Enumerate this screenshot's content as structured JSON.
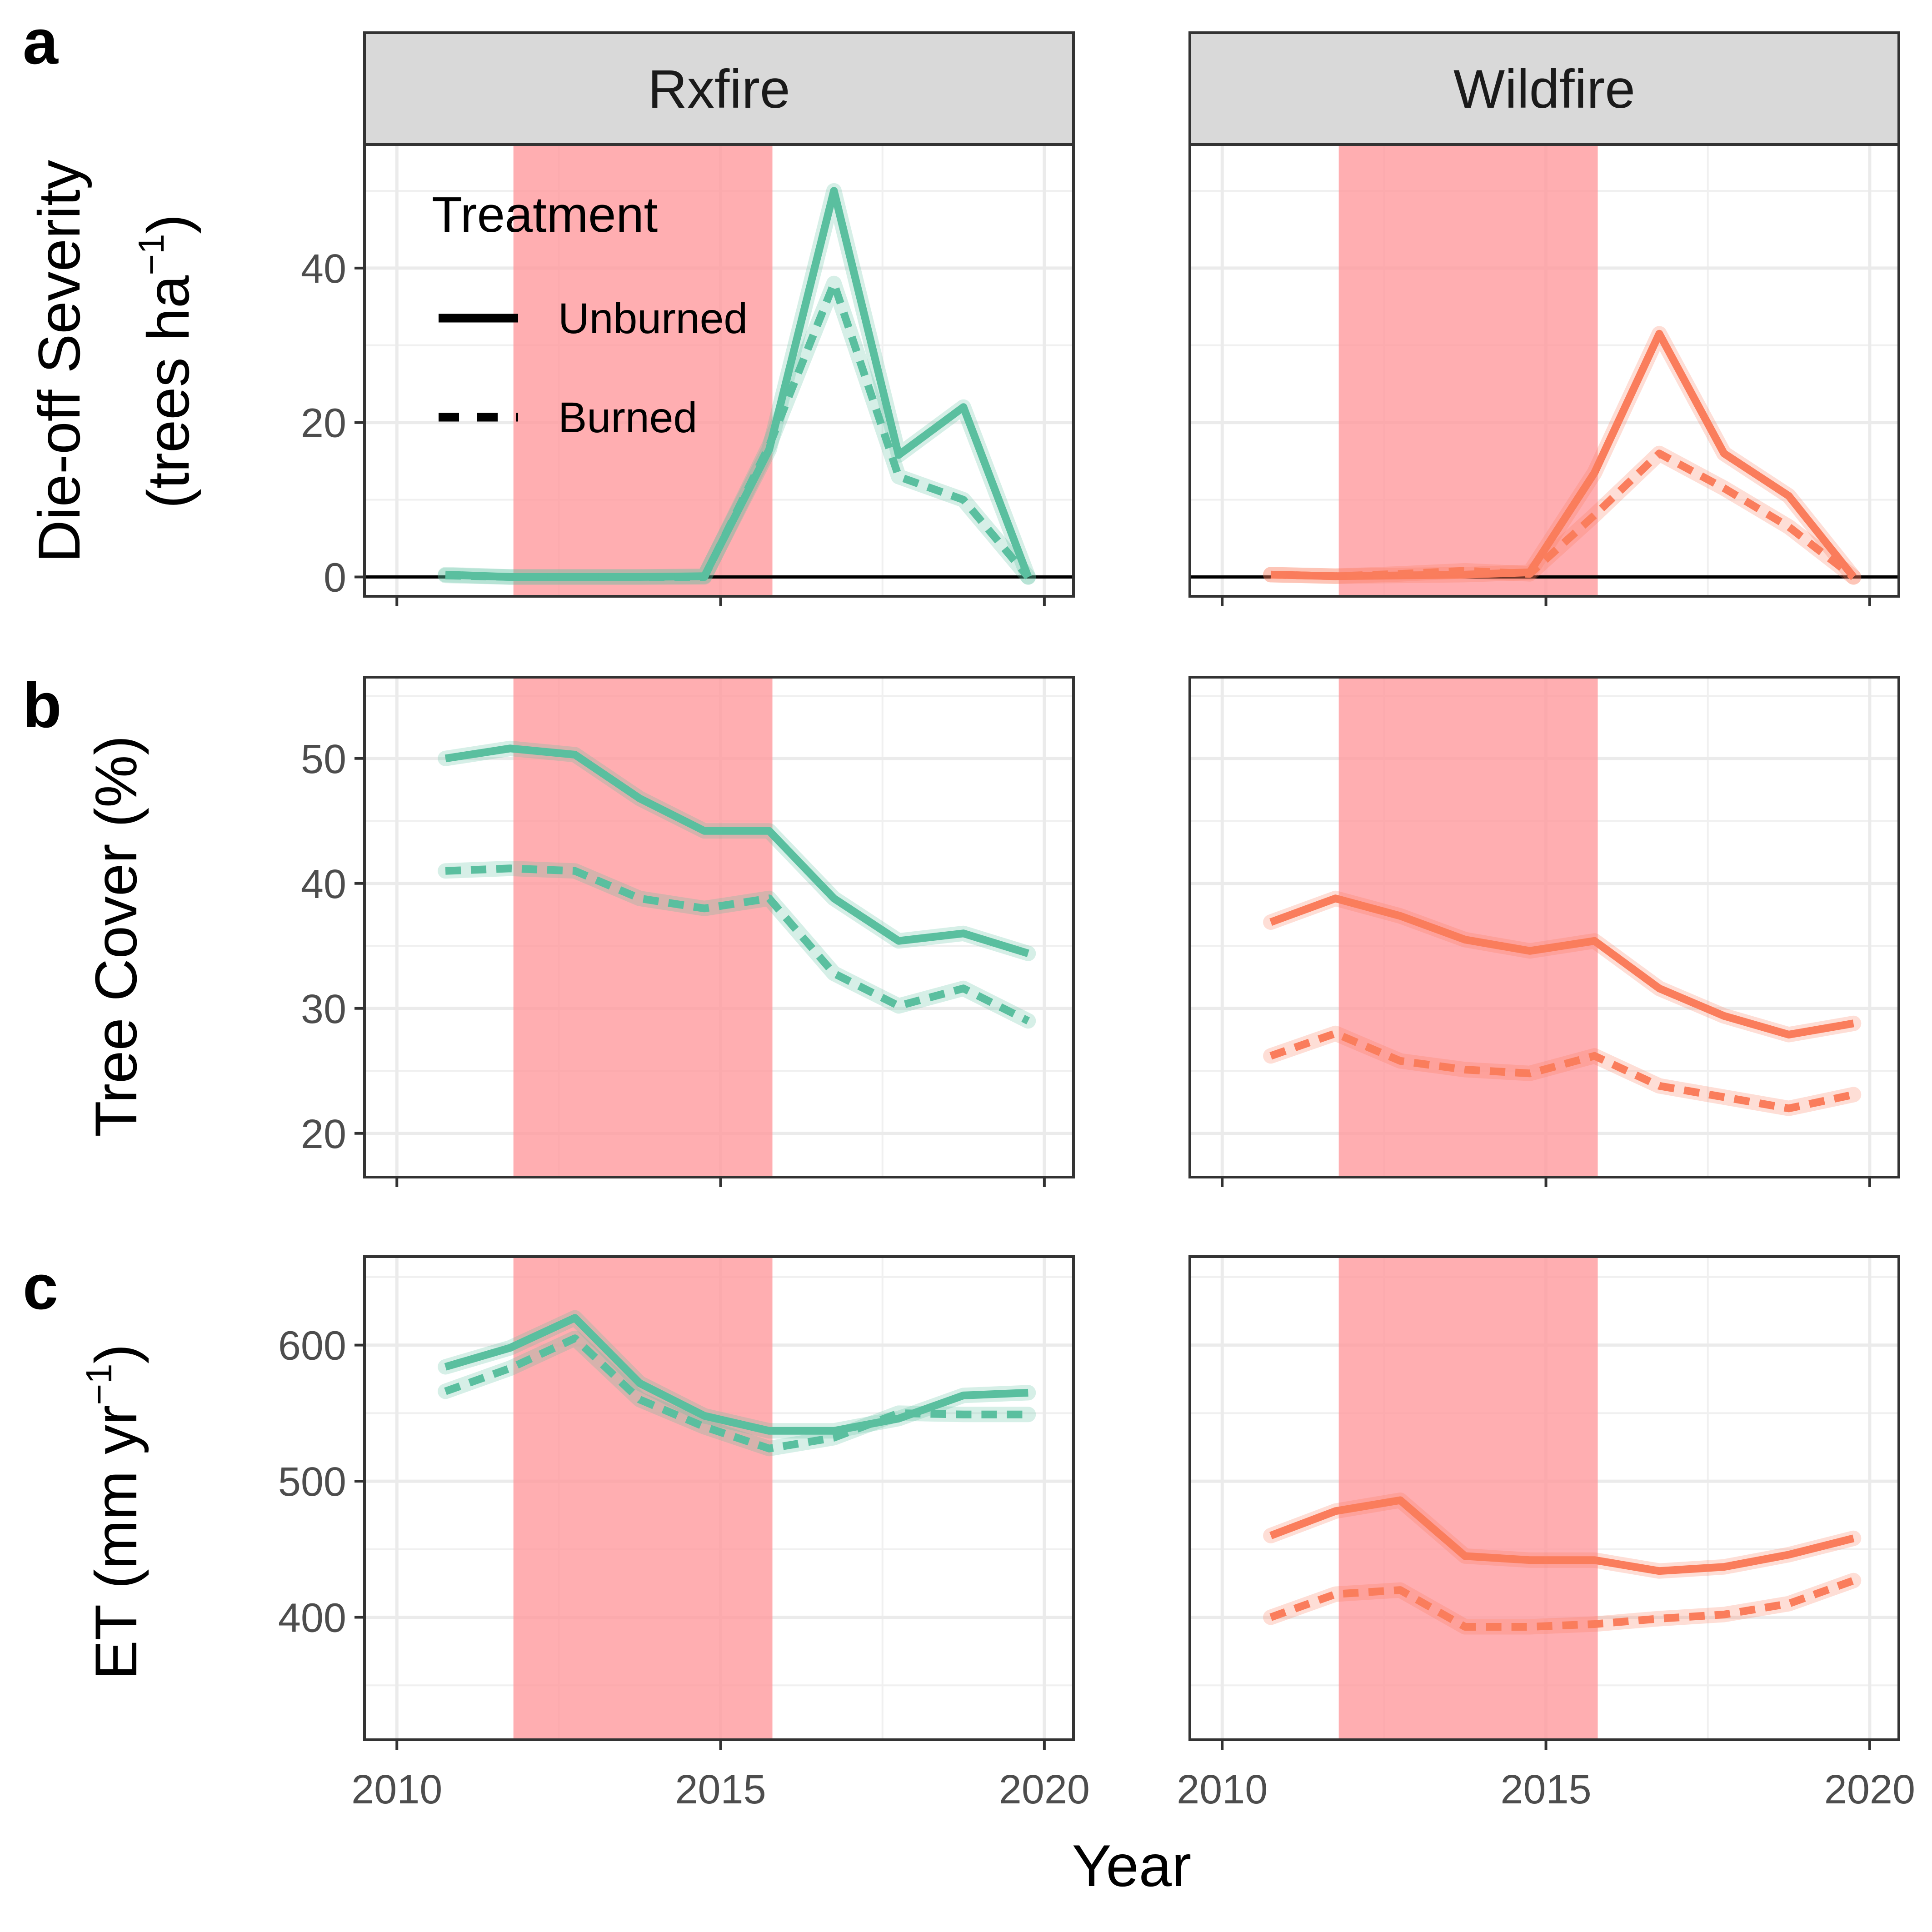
{
  "chart_data": {
    "type": "line",
    "facets": [
      "Rxfire",
      "Wildfire"
    ],
    "xlabel": "Year",
    "x_ticks": [
      2010,
      2015,
      2020
    ],
    "xlim": [
      2009.5,
      2020.45
    ],
    "drought_band": [
      2011.8,
      2015.8
    ],
    "years": [
      2010.75,
      2011.75,
      2012.75,
      2013.75,
      2014.75,
      2015.75,
      2016.75,
      2017.75,
      2018.75,
      2019.75
    ],
    "colors": {
      "Rxfire": "#5ABF9F",
      "Wildfire": "#FA7D5C",
      "drought": "#FF9A9D"
    },
    "legend": {
      "title": "Treatment",
      "entries": [
        {
          "label": "Unburned",
          "linetype": "solid"
        },
        {
          "label": "Burned",
          "linetype": "dashed"
        }
      ],
      "position": "inside top-left (Rxfire, panel a)"
    },
    "panels": [
      {
        "letter": "a",
        "ylabel_line1": "Die-off Severity",
        "ylabel_line2": "(trees ha",
        "ylabel_sup": "−1",
        "ylabel_close": ")",
        "ylim": [
          -2.5,
          56
        ],
        "y_ticks": [
          0,
          20,
          40
        ],
        "zero_line": true,
        "series": {
          "Rxfire": {
            "Unburned": [
              0.3,
              0.0,
              0.0,
              0.0,
              0.1,
              16.5,
              50.0,
              15.8,
              22.0,
              0.0
            ],
            "Burned": [
              0.2,
              0.0,
              0.0,
              0.0,
              0.0,
              17.0,
              38.0,
              13.0,
              10.0,
              0.0
            ]
          },
          "Wildfire": {
            "Unburned": [
              0.3,
              0.1,
              0.2,
              0.3,
              0.6,
              13.5,
              31.5,
              16.0,
              10.5,
              0.0
            ],
            "Burned": [
              0.3,
              0.1,
              0.4,
              0.8,
              0.4,
              8.0,
              16.0,
              11.5,
              6.5,
              0.0
            ]
          }
        }
      },
      {
        "letter": "b",
        "ylabel_line1": "Tree Cover (%)",
        "ylim": [
          16.5,
          56.5
        ],
        "y_ticks": [
          20,
          30,
          40,
          50
        ],
        "zero_line": false,
        "series": {
          "Rxfire": {
            "Unburned": [
              50.0,
              50.8,
              50.3,
              46.8,
              44.2,
              44.2,
              38.8,
              35.4,
              36.0,
              34.4
            ],
            "Burned": [
              41.0,
              41.2,
              41.0,
              38.8,
              38.0,
              38.8,
              32.8,
              30.2,
              31.6,
              29.0
            ]
          },
          "Wildfire": {
            "Unburned": [
              36.9,
              38.8,
              37.4,
              35.5,
              34.6,
              35.4,
              31.6,
              29.4,
              27.9,
              28.8
            ],
            "Burned": [
              26.2,
              28.0,
              25.8,
              25.1,
              24.8,
              26.2,
              23.8,
              22.9,
              22.0,
              23.1
            ]
          }
        }
      },
      {
        "letter": "c",
        "ylabel_line1": "ET (mm yr",
        "ylabel_sup": "−1",
        "ylabel_close": ")",
        "ylim": [
          310,
          665
        ],
        "y_ticks": [
          400,
          500,
          600
        ],
        "zero_line": false,
        "series": {
          "Rxfire": {
            "Unburned": [
              584,
              598,
              620,
              572,
              548,
              537,
              537,
              546,
              563,
              565
            ],
            "Burned": [
              566,
              583,
              605,
              560,
              540,
              524,
              532,
              550,
              549,
              549
            ]
          },
          "Wildfire": {
            "Unburned": [
              460,
              478,
              486,
              445,
              442,
              442,
              434,
              437,
              446,
              458
            ],
            "Burned": [
              400,
              417,
              420,
              393,
              393,
              395,
              399,
              402,
              410,
              427
            ]
          }
        }
      }
    ]
  }
}
